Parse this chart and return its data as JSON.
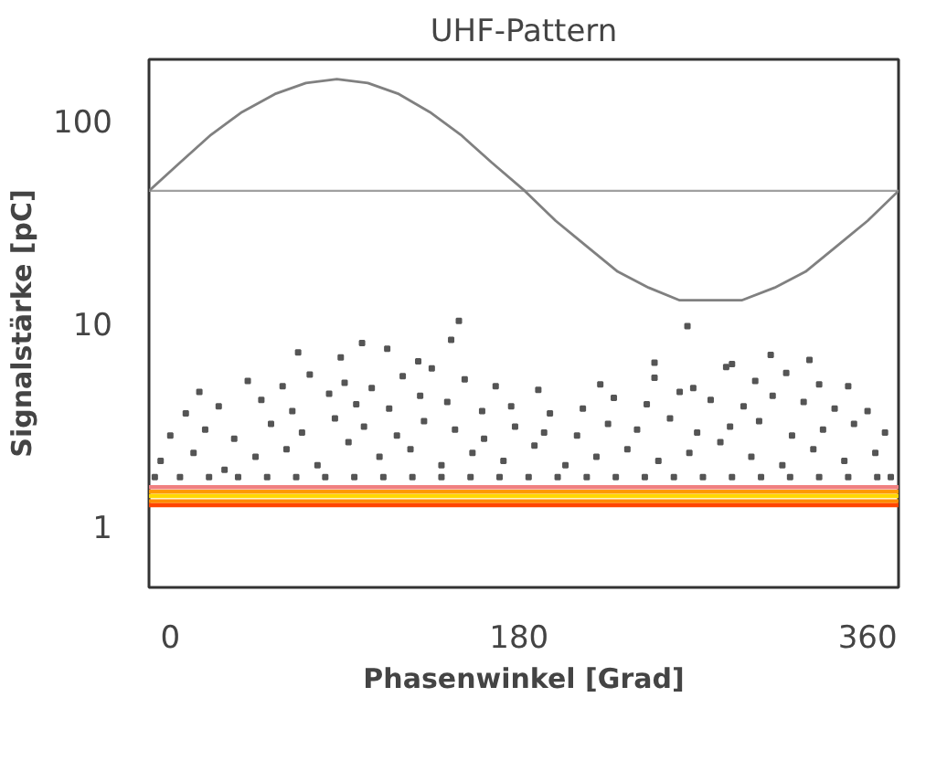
{
  "chart_data": {
    "type": "scatter",
    "title": "UHF-Pattern",
    "xlabel": "Phasenwinkel [Grad]",
    "ylabel": "Signalstärke [pC]",
    "xlim": [
      -11,
      376
    ],
    "ylim": [
      0.5,
      200
    ],
    "xticks": [
      0,
      180,
      360
    ],
    "yticks": [
      1,
      10,
      100
    ],
    "log": "y",
    "grid": false,
    "ref_lines": [
      {
        "axis": "y",
        "value": 45,
        "color": "#a0a0a0"
      }
    ],
    "series": [
      {
        "type": "line",
        "color": "#808080",
        "x": [
          -11,
          5,
          21,
          37,
          54,
          70,
          86,
          102,
          118,
          134,
          150,
          166,
          183,
          199,
          215,
          231,
          247,
          263,
          279,
          295,
          312,
          328,
          344,
          360,
          376
        ],
        "values": [
          45,
          62,
          85,
          110,
          135,
          153,
          160,
          153,
          135,
          110,
          85,
          62,
          45,
          32,
          24,
          18,
          15,
          13,
          13,
          13,
          15,
          18,
          24,
          32,
          45
        ]
      },
      {
        "type": "line",
        "color": "#f08080",
        "x": [
          -11,
          376
        ],
        "values": [
          1.56,
          1.56
        ]
      },
      {
        "type": "line",
        "color": "#ff9900",
        "x": [
          -11,
          376
        ],
        "values": [
          1.48,
          1.48
        ]
      },
      {
        "type": "line",
        "color": "#ffd700",
        "x": [
          -11,
          376
        ],
        "values": [
          1.41,
          1.41
        ]
      },
      {
        "type": "line",
        "color": "#ff8c00",
        "x": [
          -11,
          376
        ],
        "values": [
          1.33,
          1.33
        ]
      },
      {
        "type": "line",
        "color": "#ff4500",
        "x": [
          -11,
          376
        ],
        "values": [
          1.27,
          1.27
        ]
      },
      {
        "color": "#555555",
        "marker": "square",
        "x": [
          -8,
          5,
          20,
          35,
          50,
          65,
          80,
          95,
          110,
          125,
          140,
          155,
          170,
          185,
          200,
          215,
          230,
          245,
          260,
          275,
          290,
          305,
          320,
          335,
          350,
          365,
          372,
          -5,
          12,
          28,
          44,
          60,
          76,
          92,
          108,
          124,
          140,
          156,
          172,
          188,
          204,
          220,
          236,
          252,
          268,
          284,
          300,
          316,
          332,
          348,
          364,
          0,
          18,
          33,
          52,
          68,
          85,
          100,
          117,
          131,
          147,
          162,
          178,
          193,
          210,
          226,
          241,
          258,
          272,
          289,
          304,
          321,
          337,
          353,
          369,
          8,
          25,
          47,
          63,
          82,
          96,
          113,
          129,
          143,
          161,
          176,
          196,
          213,
          229,
          246,
          263,
          279,
          296,
          311,
          327,
          343,
          360,
          15,
          40,
          58,
          72,
          90,
          104,
          120,
          135,
          152,
          168,
          190,
          222,
          250,
          270,
          287,
          302,
          318,
          335,
          350,
          66,
          88,
          99,
          112,
          128,
          145,
          250,
          290,
          310,
          330,
          149,
          267
        ],
        "values": [
          1.75,
          1.75,
          1.75,
          1.75,
          1.75,
          1.75,
          1.75,
          1.75,
          1.75,
          1.75,
          1.75,
          1.75,
          1.75,
          1.75,
          1.75,
          1.75,
          1.75,
          1.75,
          1.75,
          1.75,
          1.75,
          1.75,
          1.75,
          1.75,
          1.75,
          1.75,
          1.75,
          2.1,
          2.3,
          1.9,
          2.2,
          2.4,
          2.0,
          2.6,
          2.2,
          2.4,
          2.0,
          2.3,
          2.1,
          2.5,
          2.0,
          2.2,
          2.4,
          2.1,
          2.3,
          2.6,
          2.2,
          2.0,
          2.4,
          2.1,
          2.3,
          2.8,
          3.0,
          2.7,
          3.2,
          2.9,
          3.4,
          3.1,
          2.8,
          3.3,
          3.0,
          2.7,
          3.1,
          2.9,
          2.8,
          3.2,
          3.0,
          3.4,
          2.9,
          3.1,
          3.3,
          2.8,
          3.0,
          3.2,
          2.9,
          3.6,
          3.9,
          4.2,
          3.7,
          4.5,
          4.0,
          3.8,
          4.4,
          4.1,
          3.7,
          3.9,
          3.6,
          3.8,
          4.3,
          4.0,
          4.6,
          4.2,
          3.9,
          4.4,
          4.1,
          3.8,
          3.7,
          4.6,
          5.2,
          4.9,
          5.6,
          5.1,
          4.8,
          5.5,
          6.0,
          5.3,
          4.9,
          4.7,
          5.0,
          5.4,
          4.8,
          6.1,
          5.2,
          5.7,
          5.0,
          4.9,
          7.2,
          6.8,
          8.0,
          7.5,
          6.5,
          8.3,
          6.4,
          6.3,
          7.0,
          6.6,
          10.3,
          9.7
        ]
      }
    ]
  }
}
